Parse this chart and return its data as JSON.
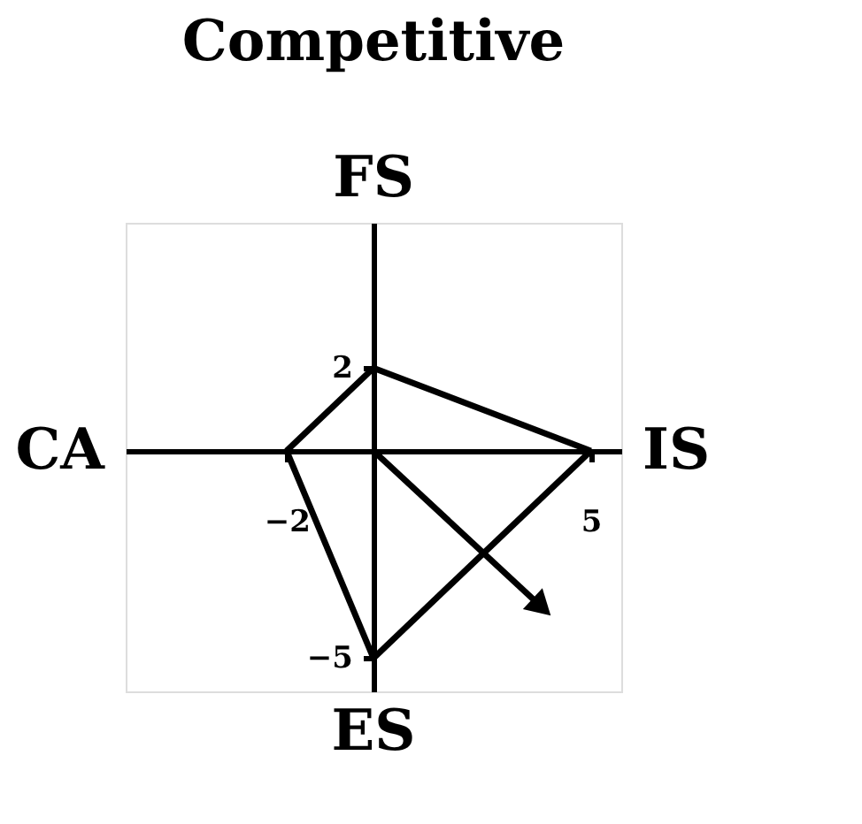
{
  "chart_data": {
    "type": "line",
    "title": "Competitive",
    "annotations": [
      "CA",
      "IS",
      "FS",
      "ES"
    ],
    "xlim": [
      -5.7,
      5.7
    ],
    "ylim": [
      -5.8,
      5.5
    ],
    "xticks": [
      -2,
      5
    ],
    "yticks": [
      -5,
      2
    ],
    "grid": false,
    "line_style": "solid",
    "series": [
      {
        "color": "#000000",
        "x": [
          0,
          5
        ],
        "values": [
          2,
          0
        ]
      },
      {
        "color": "#000000",
        "x": [
          5,
          0
        ],
        "values": [
          0,
          -5
        ]
      },
      {
        "color": "#000000",
        "x": [
          0,
          -2
        ],
        "values": [
          -5,
          0
        ]
      },
      {
        "color": "#000000",
        "x": [
          -2,
          0
        ],
        "values": [
          0,
          2
        ]
      },
      {
        "color": "#000000",
        "x": [
          0,
          3.8
        ],
        "values": [
          0,
          -3.7
        ]
      }
    ]
  }
}
